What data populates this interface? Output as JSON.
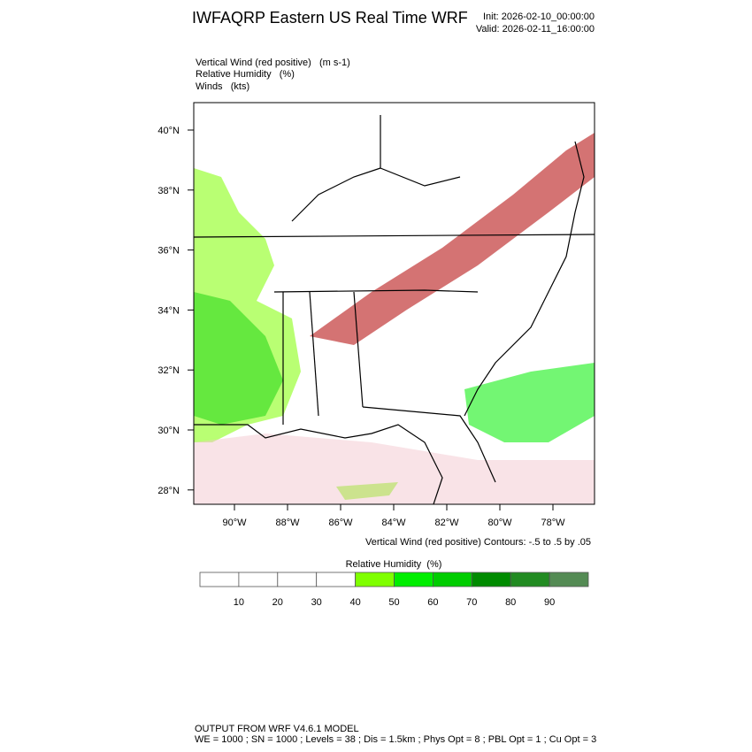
{
  "header": {
    "title": "IWFAQRP Eastern US Real Time WRF",
    "init": "Init: 2026-02-10_00:00:00",
    "valid": "Valid: 2026-02-11_16:00:00"
  },
  "fields": [
    "Vertical Wind (red positive)   (m s-1)",
    "Relative Humidity   (%)",
    "Winds   (kts)"
  ],
  "map": {
    "lat_labels": [
      "40°N",
      "38°N",
      "36°N",
      "34°N",
      "32°N",
      "30°N",
      "28°N"
    ],
    "lon_labels": [
      "90°W",
      "88°W",
      "86°W",
      "84°W",
      "82°W",
      "80°W",
      "78°W"
    ],
    "contour_note": "Vertical Wind (red positive) Contours: -.5 to .5 by .05"
  },
  "colorbar": {
    "title": "Relative Humidity  (%)",
    "labels": [
      10,
      20,
      30,
      40,
      50,
      60,
      70,
      80,
      90
    ],
    "colors": [
      "#ffffff",
      "#ffffff",
      "#ffffff",
      "#ffffff",
      "#7fff00",
      "#00ee00",
      "#00cd00",
      "#008b00",
      "#228b22",
      "#548b54"
    ]
  },
  "footer": [
    "OUTPUT FROM WRF V4.6.1 MODEL",
    "WE = 1000 ; SN = 1000 ; Levels = 38 ; Dis = 1.5km ; Phys Opt = 8 ; PBL Opt = 1 ; Cu Opt = 3"
  ]
}
